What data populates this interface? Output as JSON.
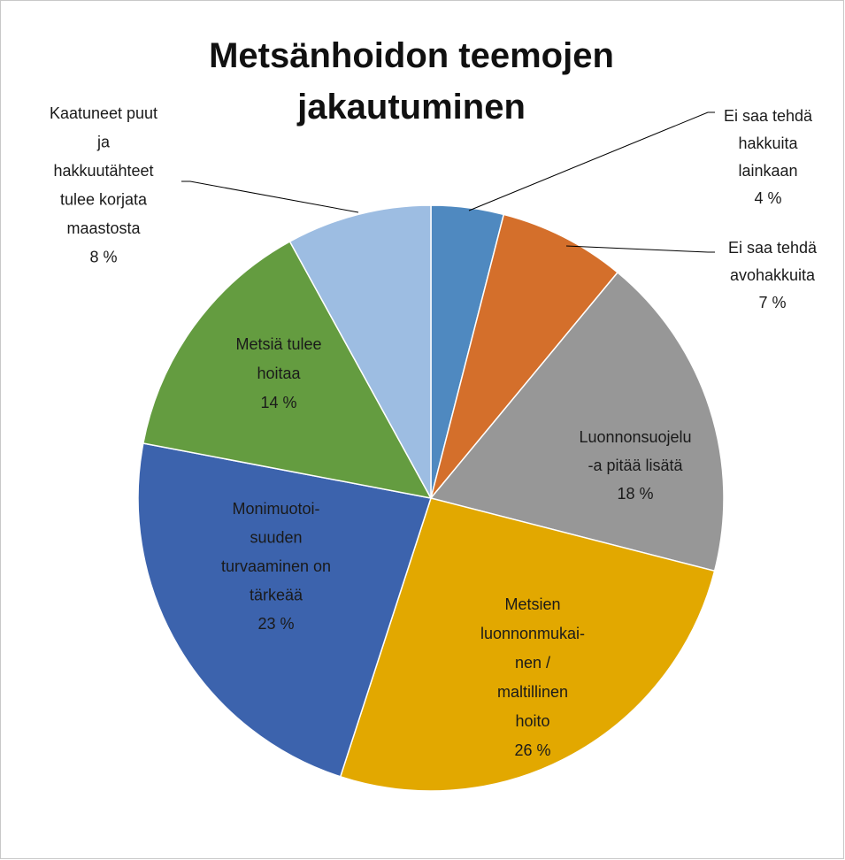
{
  "chart_data": {
    "type": "pie",
    "title": "Metsänhoidon teemojen\njakautuminen",
    "categories": [
      "Ei saa tehdä\nhakkuita\nlainkaan",
      "Ei saa tehdä\navohakkuita",
      "Luonnonsuojelu\n-a pitää lisätä",
      "Metsien\nluonnonmukai-\nnen /\nmaltillinen\nhoito",
      "Monimuotoi-\nsuuden\nturvaaminen on\ntärkeää",
      "Metsiä tulee\nhoitaa",
      "Kaatuneet puut\nja\nhakkuutähteet\ntulee korjata\nmaastosta"
    ],
    "values": [
      4,
      7,
      18,
      26,
      23,
      14,
      8
    ],
    "value_labels": [
      "4 %",
      "7 %",
      "18 %",
      "26 %",
      "23 %",
      "14 %",
      "8 %"
    ],
    "colors": [
      "#4f89c0",
      "#d46f2b",
      "#979797",
      "#e2a800",
      "#3c63ad",
      "#649c40",
      "#9dbde2"
    ]
  }
}
